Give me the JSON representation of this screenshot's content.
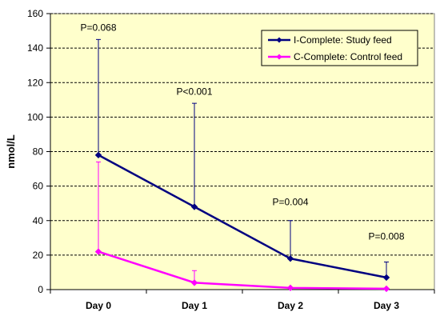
{
  "chart_data": {
    "type": "line",
    "ylabel": "nmol/L",
    "xlabel": "",
    "title": "",
    "ylim": [
      0,
      160
    ],
    "yticks": [
      0,
      20,
      40,
      60,
      80,
      100,
      120,
      140,
      160
    ],
    "categories": [
      "Day 0",
      "Day 1",
      "Day 2",
      "Day 3"
    ],
    "grid": "horizontal dashed",
    "legend_position": "top-right",
    "plot_background": "#ffffcc",
    "series": [
      {
        "name": "I-Complete: Study feed",
        "color": "#000080",
        "values": [
          78,
          48,
          18,
          7
        ],
        "error_upper": [
          145,
          108,
          40,
          16
        ]
      },
      {
        "name": "C-Complete: Control feed",
        "color": "#ff00ff",
        "values": [
          22,
          4,
          1,
          0.5
        ],
        "error_upper": [
          74,
          11,
          1,
          0.5
        ]
      }
    ],
    "annotations": [
      {
        "text": "P=0.068",
        "category": "Day 0",
        "y": 150
      },
      {
        "text": "P<0.001",
        "category": "Day 1",
        "y": 113
      },
      {
        "text": "P=0.004",
        "category": "Day 2",
        "y": 49
      },
      {
        "text": "P=0.008",
        "category": "Day 3",
        "y": 29
      }
    ]
  }
}
